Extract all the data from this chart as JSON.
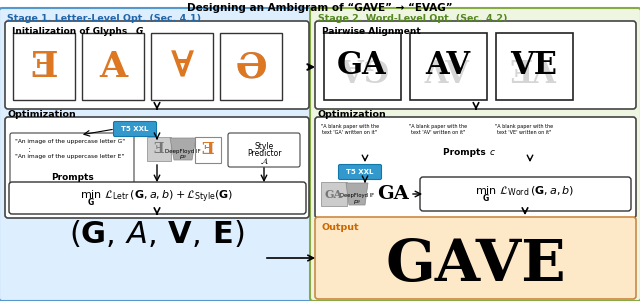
{
  "bg_color": "#ffffff",
  "stage1_bg": "#ddeeff",
  "stage1_border": "#5599cc",
  "stage1_label": "Stage 1. Letter-Level Opt. (Sec. 4.1)",
  "stage1_label_color": "#2266aa",
  "stage2_bg": "#eef5e0",
  "stage2_border": "#88aa44",
  "stage2_label": "Stage 2. Word-Level Opt. (Sec. 4.2)",
  "stage2_label_color": "#558822",
  "output_bg": "#fde8c8",
  "output_border": "#cc8844",
  "output_label": "Output",
  "output_label_color": "#cc6600",
  "t5_bg": "#3399cc",
  "t5_border": "#1177aa",
  "deepfloyd_bg": "#bbbbbb",
  "style_bg": "#ffffff",
  "white": "#ffffff",
  "black": "#000000",
  "dark": "#222222",
  "orange": "#dd7722",
  "blue_dark": "#334488"
}
